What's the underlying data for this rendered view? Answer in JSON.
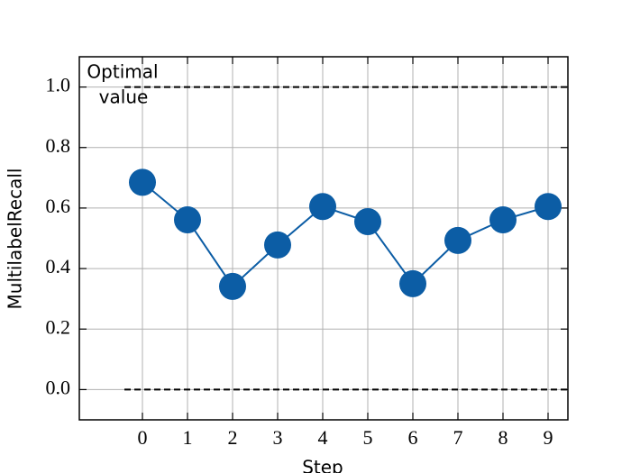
{
  "chart_data": {
    "type": "line",
    "xlabel": "Step",
    "ylabel": "MultilabelRecall",
    "x": [
      0,
      1,
      2,
      3,
      4,
      5,
      6,
      7,
      8,
      9
    ],
    "series": [
      {
        "color": "#0c5da5",
        "values": [
          0.685,
          0.561,
          0.341,
          0.478,
          0.605,
          0.555,
          0.35,
          0.493,
          0.561,
          0.605
        ]
      }
    ],
    "xlim": [
      -1.4,
      9.44
    ],
    "ylim": [
      -0.1,
      1.1
    ],
    "xticks": [
      0,
      1,
      2,
      3,
      4,
      5,
      6,
      7,
      8,
      9
    ],
    "yticks": [
      {
        "value": 0,
        "label": "0.0"
      },
      0.2,
      0.4,
      0.6,
      0.8,
      {
        "value": 1,
        "label": "1.0"
      }
    ],
    "grid": true,
    "hlines": [
      1,
      0
    ],
    "hline_xstart": -0.4,
    "annotation": [
      "Optimal",
      "value"
    ]
  }
}
